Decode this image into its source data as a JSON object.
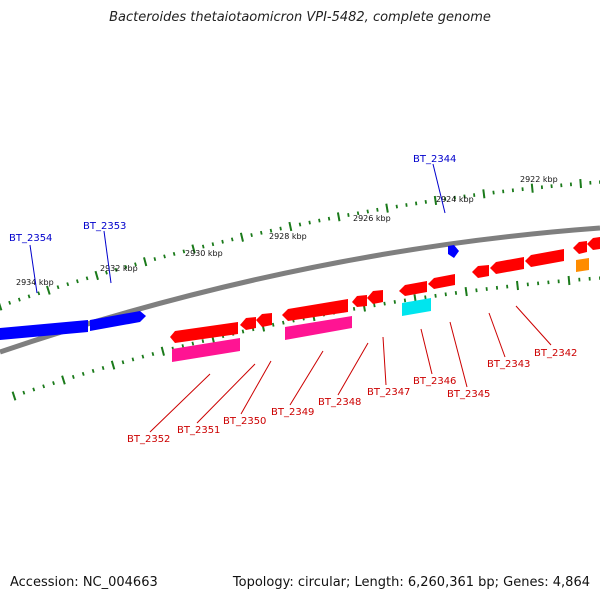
{
  "title": "Bacteroides thetaiotaomicron VPI-5482, complete genome",
  "footer": {
    "accession": "Accession: NC_004663",
    "summary": "Topology: circular; Length: 6,260,361 bp; Genes: 4,864"
  },
  "colors": {
    "backbone": "#7f7f7f",
    "tick": "#1a7a1a",
    "forward_gene": "#0000ff",
    "reverse_gene": "#ff0000",
    "reverse_gene_secondary": "#ff1493",
    "teal_gene": "#00e5ee",
    "orange_gene": "#ff8c00",
    "forward_label": "#0000cc",
    "reverse_label": "#cc0000"
  },
  "scale": {
    "unit": "kbp",
    "ticks": [
      "2922 kbp",
      "2924 kbp",
      "2926 kbp",
      "2928 kbp",
      "2930 kbp",
      "2932 kbp",
      "2934 kbp"
    ]
  },
  "forward_genes": [
    "BT_2354",
    "BT_2353",
    "BT_2344"
  ],
  "reverse_genes": [
    "BT_2352",
    "BT_2351",
    "BT_2350",
    "BT_2349",
    "BT_2348",
    "BT_2347",
    "BT_2346",
    "BT_2345",
    "BT_2343",
    "BT_2342"
  ]
}
